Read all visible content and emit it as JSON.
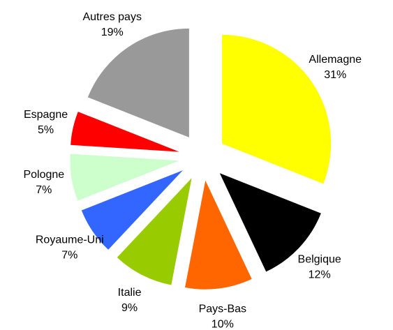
{
  "chart_data": {
    "type": "pie",
    "categories": [
      "Allemagne",
      "Belgique",
      "Pays-Bas",
      "Italie",
      "Royaume-Uni",
      "Pologne",
      "Espagne",
      "Autres pays"
    ],
    "values": [
      31,
      12,
      10,
      9,
      7,
      7,
      5,
      19
    ],
    "value_labels": [
      "31%",
      "12%",
      "10%",
      "9%",
      "7%",
      "7%",
      "5%",
      "19%"
    ],
    "colors": [
      "#ffff00",
      "#000000",
      "#ff6600",
      "#99cc00",
      "#3366ff",
      "#ccffcc",
      "#ff0000",
      "#999999"
    ]
  }
}
